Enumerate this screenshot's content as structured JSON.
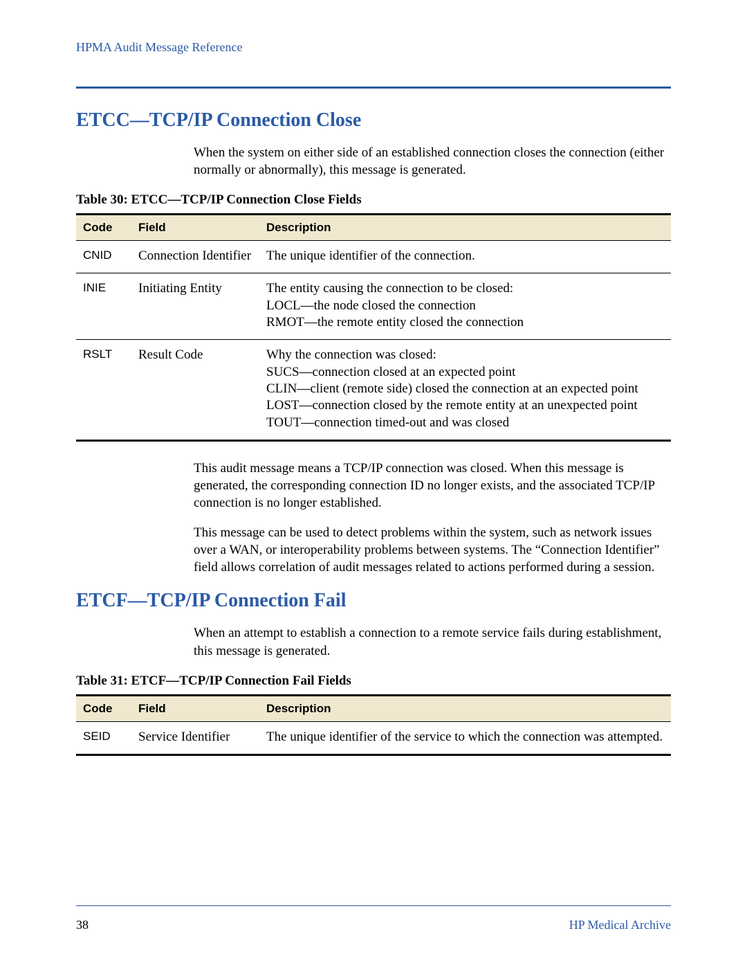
{
  "colors": {
    "accent": "#2a5aa5",
    "table_header_bg": "#efe8cf",
    "text": "#000000",
    "background": "#ffffff"
  },
  "typography": {
    "body_font": "Palatino Linotype / Book Antiqua / Georgia serif",
    "sans_font": "Arial / Helvetica",
    "body_size_pt": 14,
    "heading_size_pt": 21,
    "caption_size_pt": 14
  },
  "header": {
    "running": "HPMA Audit Message Reference"
  },
  "section1": {
    "title": "ETCC—TCP/IP Connection Close",
    "intro": "When the system on either side of an established connection closes the connection (either normally or abnormally), this message is generated.",
    "table_caption": "Table 30: ETCC—TCP/IP Connection Close Fields",
    "columns": {
      "c1": "Code",
      "c2": "Field",
      "c3": "Description"
    },
    "rows": [
      {
        "code": "CNID",
        "field": "Connection Identifier",
        "desc": "The unique identifier of the connection."
      },
      {
        "code": "INIE",
        "field": "Initiating Entity",
        "desc": "The entity causing the connection to be closed:\nLOCL—the node closed the connection\nRMOT—the remote entity closed the connection"
      },
      {
        "code": "RSLT",
        "field": "Result Code",
        "desc": "Why the connection was closed:\nSUCS—connection closed at an expected point\nCLIN—client (remote side) closed the connection at an expected point\nLOST—connection closed by the remote entity at an unexpected point\nTOUT—connection timed-out and was closed"
      }
    ],
    "after_para1": "This audit message means a TCP/IP connection was closed. When this message is generated, the corresponding connection ID no longer exists, and the associated TCP/IP connection is no longer established.",
    "after_para2": "This message can be used to detect problems within the system, such as network issues over a WAN, or interoperability problems between systems. The “Connection Identifier” field allows correlation of audit messages related to actions performed during a session."
  },
  "section2": {
    "title": "ETCF—TCP/IP Connection Fail",
    "intro": "When an attempt to establish a connection to a remote service fails during establishment, this message is generated.",
    "table_caption": "Table 31: ETCF—TCP/IP Connection Fail Fields",
    "columns": {
      "c1": "Code",
      "c2": "Field",
      "c3": "Description"
    },
    "rows": [
      {
        "code": "SEID",
        "field": "Service Identifier",
        "desc": "The unique identifier of the service to which the connection was attempted."
      }
    ]
  },
  "footer": {
    "page_number": "38",
    "brand": "HP Medical Archive"
  }
}
